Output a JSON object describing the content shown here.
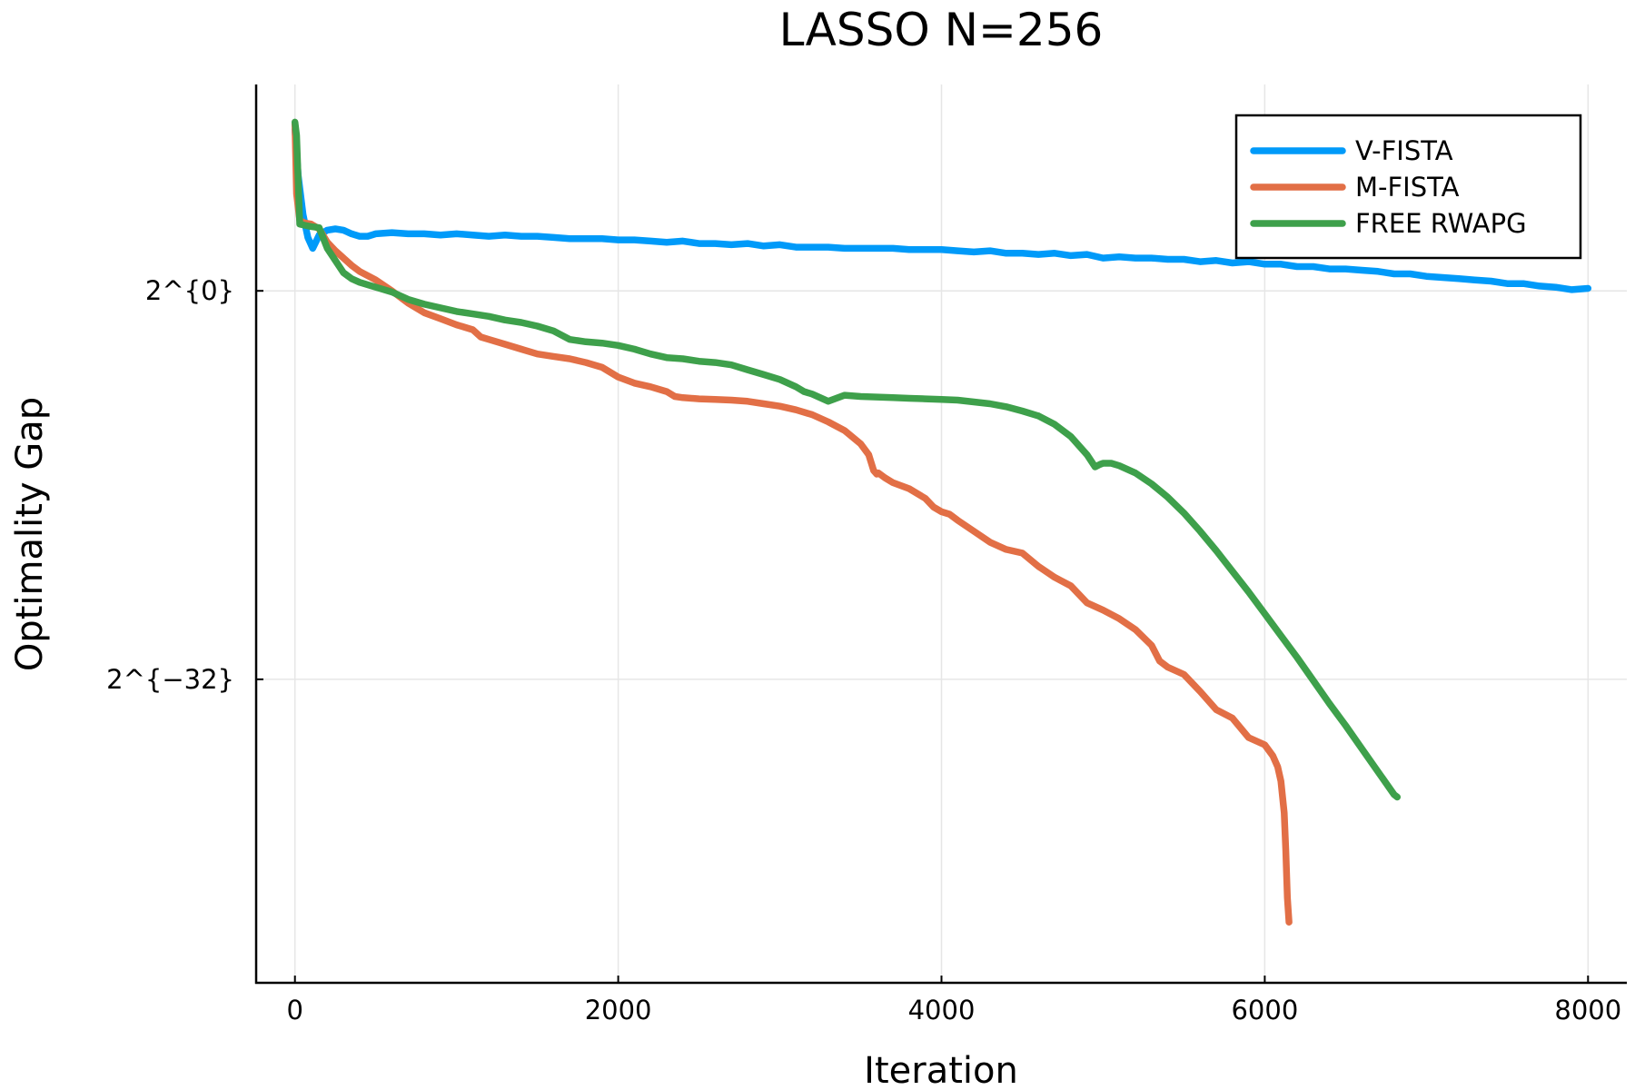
{
  "chart_data": {
    "type": "line",
    "title": "LASSO N=256",
    "xlabel": "Iteration",
    "ylabel": "Optimality Gap",
    "xlim": [
      -240,
      8240
    ],
    "ylim": [
      -57,
      17
    ],
    "y_scale": "log2",
    "x_ticks": [
      {
        "value": 0,
        "label": "0"
      },
      {
        "value": 2000,
        "label": "2000"
      },
      {
        "value": 4000,
        "label": "4000"
      },
      {
        "value": 6000,
        "label": "6000"
      },
      {
        "value": 8000,
        "label": "8000"
      }
    ],
    "y_ticks": [
      {
        "value": 0,
        "label": "2^{0}"
      },
      {
        "value": -32,
        "label": "2^{−32}"
      }
    ],
    "grid": true,
    "legend_position": "top-right",
    "series": [
      {
        "name": "V-FISTA",
        "color": "#009af9",
        "x": [
          0,
          20,
          50,
          80,
          110,
          150,
          200,
          250,
          300,
          350,
          400,
          450,
          500,
          600,
          700,
          800,
          900,
          1000,
          1100,
          1200,
          1300,
          1400,
          1500,
          1600,
          1700,
          1800,
          1900,
          2000,
          2100,
          2200,
          2300,
          2400,
          2500,
          2600,
          2700,
          2800,
          2900,
          3000,
          3100,
          3200,
          3300,
          3400,
          3500,
          3600,
          3700,
          3800,
          3900,
          4000,
          4100,
          4200,
          4300,
          4400,
          4500,
          4600,
          4700,
          4800,
          4900,
          5000,
          5100,
          5200,
          5300,
          5400,
          5500,
          5600,
          5700,
          5800,
          5900,
          6000,
          6100,
          6200,
          6300,
          6400,
          6500,
          6600,
          6700,
          6800,
          6900,
          7000,
          7100,
          7200,
          7300,
          7400,
          7500,
          7600,
          7700,
          7800,
          7900,
          8000
        ],
        "y": [
          13.3,
          9.5,
          6.3,
          4.4,
          3.5,
          4.6,
          5.0,
          5.1,
          5.0,
          4.7,
          4.5,
          4.5,
          4.7,
          4.8,
          4.7,
          4.7,
          4.6,
          4.7,
          4.6,
          4.5,
          4.6,
          4.5,
          4.5,
          4.4,
          4.3,
          4.3,
          4.3,
          4.2,
          4.2,
          4.1,
          4.0,
          4.1,
          3.9,
          3.9,
          3.8,
          3.9,
          3.7,
          3.8,
          3.6,
          3.6,
          3.6,
          3.5,
          3.5,
          3.5,
          3.5,
          3.4,
          3.4,
          3.4,
          3.3,
          3.2,
          3.3,
          3.1,
          3.1,
          3.0,
          3.1,
          2.9,
          3.0,
          2.7,
          2.8,
          2.7,
          2.7,
          2.6,
          2.6,
          2.4,
          2.5,
          2.3,
          2.4,
          2.2,
          2.2,
          2.0,
          2.0,
          1.8,
          1.8,
          1.7,
          1.6,
          1.4,
          1.4,
          1.2,
          1.1,
          1.0,
          0.9,
          0.8,
          0.6,
          0.6,
          0.4,
          0.3,
          0.1,
          0.2
        ]
      },
      {
        "name": "M-FISTA",
        "color": "#e26f46",
        "x": [
          0,
          10,
          30,
          60,
          100,
          150,
          200,
          250,
          300,
          350,
          400,
          500,
          600,
          700,
          800,
          900,
          1000,
          1100,
          1150,
          1200,
          1300,
          1400,
          1500,
          1600,
          1700,
          1800,
          1900,
          2000,
          2100,
          2200,
          2300,
          2350,
          2400,
          2500,
          2600,
          2700,
          2800,
          2900,
          3000,
          3100,
          3200,
          3300,
          3400,
          3500,
          3550,
          3580,
          3600,
          3610,
          3650,
          3700,
          3800,
          3900,
          3950,
          4000,
          4050,
          4100,
          4200,
          4300,
          4400,
          4500,
          4600,
          4700,
          4800,
          4900,
          5000,
          5100,
          5200,
          5300,
          5350,
          5400,
          5500,
          5600,
          5700,
          5800,
          5900,
          6000,
          6050,
          6080,
          6100,
          6120,
          6130,
          6140,
          6150
        ],
        "y": [
          13.8,
          8.0,
          5.8,
          5.6,
          5.5,
          5.1,
          4.0,
          3.3,
          2.7,
          2.1,
          1.6,
          0.9,
          0.0,
          -1.0,
          -1.8,
          -2.3,
          -2.8,
          -3.2,
          -3.8,
          -4.0,
          -4.4,
          -4.8,
          -5.2,
          -5.4,
          -5.6,
          -5.9,
          -6.3,
          -7.1,
          -7.6,
          -7.9,
          -8.3,
          -8.7,
          -8.8,
          -8.9,
          -8.95,
          -9.0,
          -9.1,
          -9.3,
          -9.5,
          -9.8,
          -10.2,
          -10.8,
          -11.5,
          -12.6,
          -13.5,
          -14.8,
          -15.1,
          -15.0,
          -15.4,
          -15.8,
          -16.3,
          -17.1,
          -17.8,
          -18.2,
          -18.4,
          -18.9,
          -19.8,
          -20.7,
          -21.3,
          -21.6,
          -22.7,
          -23.6,
          -24.3,
          -25.7,
          -26.3,
          -27.0,
          -27.9,
          -29.2,
          -30.5,
          -31.0,
          -31.6,
          -33.0,
          -34.5,
          -35.2,
          -36.8,
          -37.4,
          -38.3,
          -39.2,
          -40.4,
          -43.0,
          -46.0,
          -50.0,
          -52.0
        ]
      },
      {
        "name": "FREE RWAPG",
        "color": "#3ea04b",
        "x": [
          0,
          10,
          30,
          60,
          100,
          150,
          200,
          250,
          300,
          350,
          400,
          500,
          600,
          700,
          800,
          900,
          1000,
          1100,
          1200,
          1300,
          1400,
          1500,
          1600,
          1700,
          1800,
          1900,
          2000,
          2100,
          2200,
          2300,
          2400,
          2500,
          2600,
          2700,
          2800,
          2900,
          3000,
          3100,
          3150,
          3200,
          3300,
          3400,
          3500,
          3600,
          3700,
          3800,
          3900,
          4000,
          4100,
          4200,
          4300,
          4400,
          4500,
          4600,
          4700,
          4800,
          4900,
          4950,
          4980,
          5000,
          5010,
          5050,
          5100,
          5200,
          5300,
          5400,
          5500,
          5600,
          5700,
          5800,
          5900,
          6000,
          6100,
          6200,
          6300,
          6400,
          6500,
          6600,
          6700,
          6800,
          6820
        ],
        "y": [
          13.9,
          12.8,
          5.5,
          5.4,
          5.3,
          5.2,
          3.5,
          2.5,
          1.5,
          1.0,
          0.7,
          0.3,
          -0.1,
          -0.7,
          -1.1,
          -1.4,
          -1.7,
          -1.9,
          -2.1,
          -2.4,
          -2.6,
          -2.9,
          -3.3,
          -4.0,
          -4.2,
          -4.3,
          -4.5,
          -4.8,
          -5.2,
          -5.5,
          -5.6,
          -5.8,
          -5.9,
          -6.1,
          -6.5,
          -6.9,
          -7.3,
          -7.9,
          -8.3,
          -8.5,
          -9.1,
          -8.6,
          -8.7,
          -8.75,
          -8.8,
          -8.85,
          -8.9,
          -8.95,
          -9.0,
          -9.15,
          -9.3,
          -9.55,
          -9.9,
          -10.3,
          -11.0,
          -12.0,
          -13.5,
          -14.5,
          -14.3,
          -14.2,
          -14.2,
          -14.2,
          -14.4,
          -15.0,
          -15.9,
          -17.0,
          -18.3,
          -19.8,
          -21.4,
          -23.1,
          -24.8,
          -26.6,
          -28.4,
          -30.2,
          -32.1,
          -34.0,
          -35.8,
          -37.7,
          -39.6,
          -41.5,
          -41.7
        ]
      }
    ]
  }
}
